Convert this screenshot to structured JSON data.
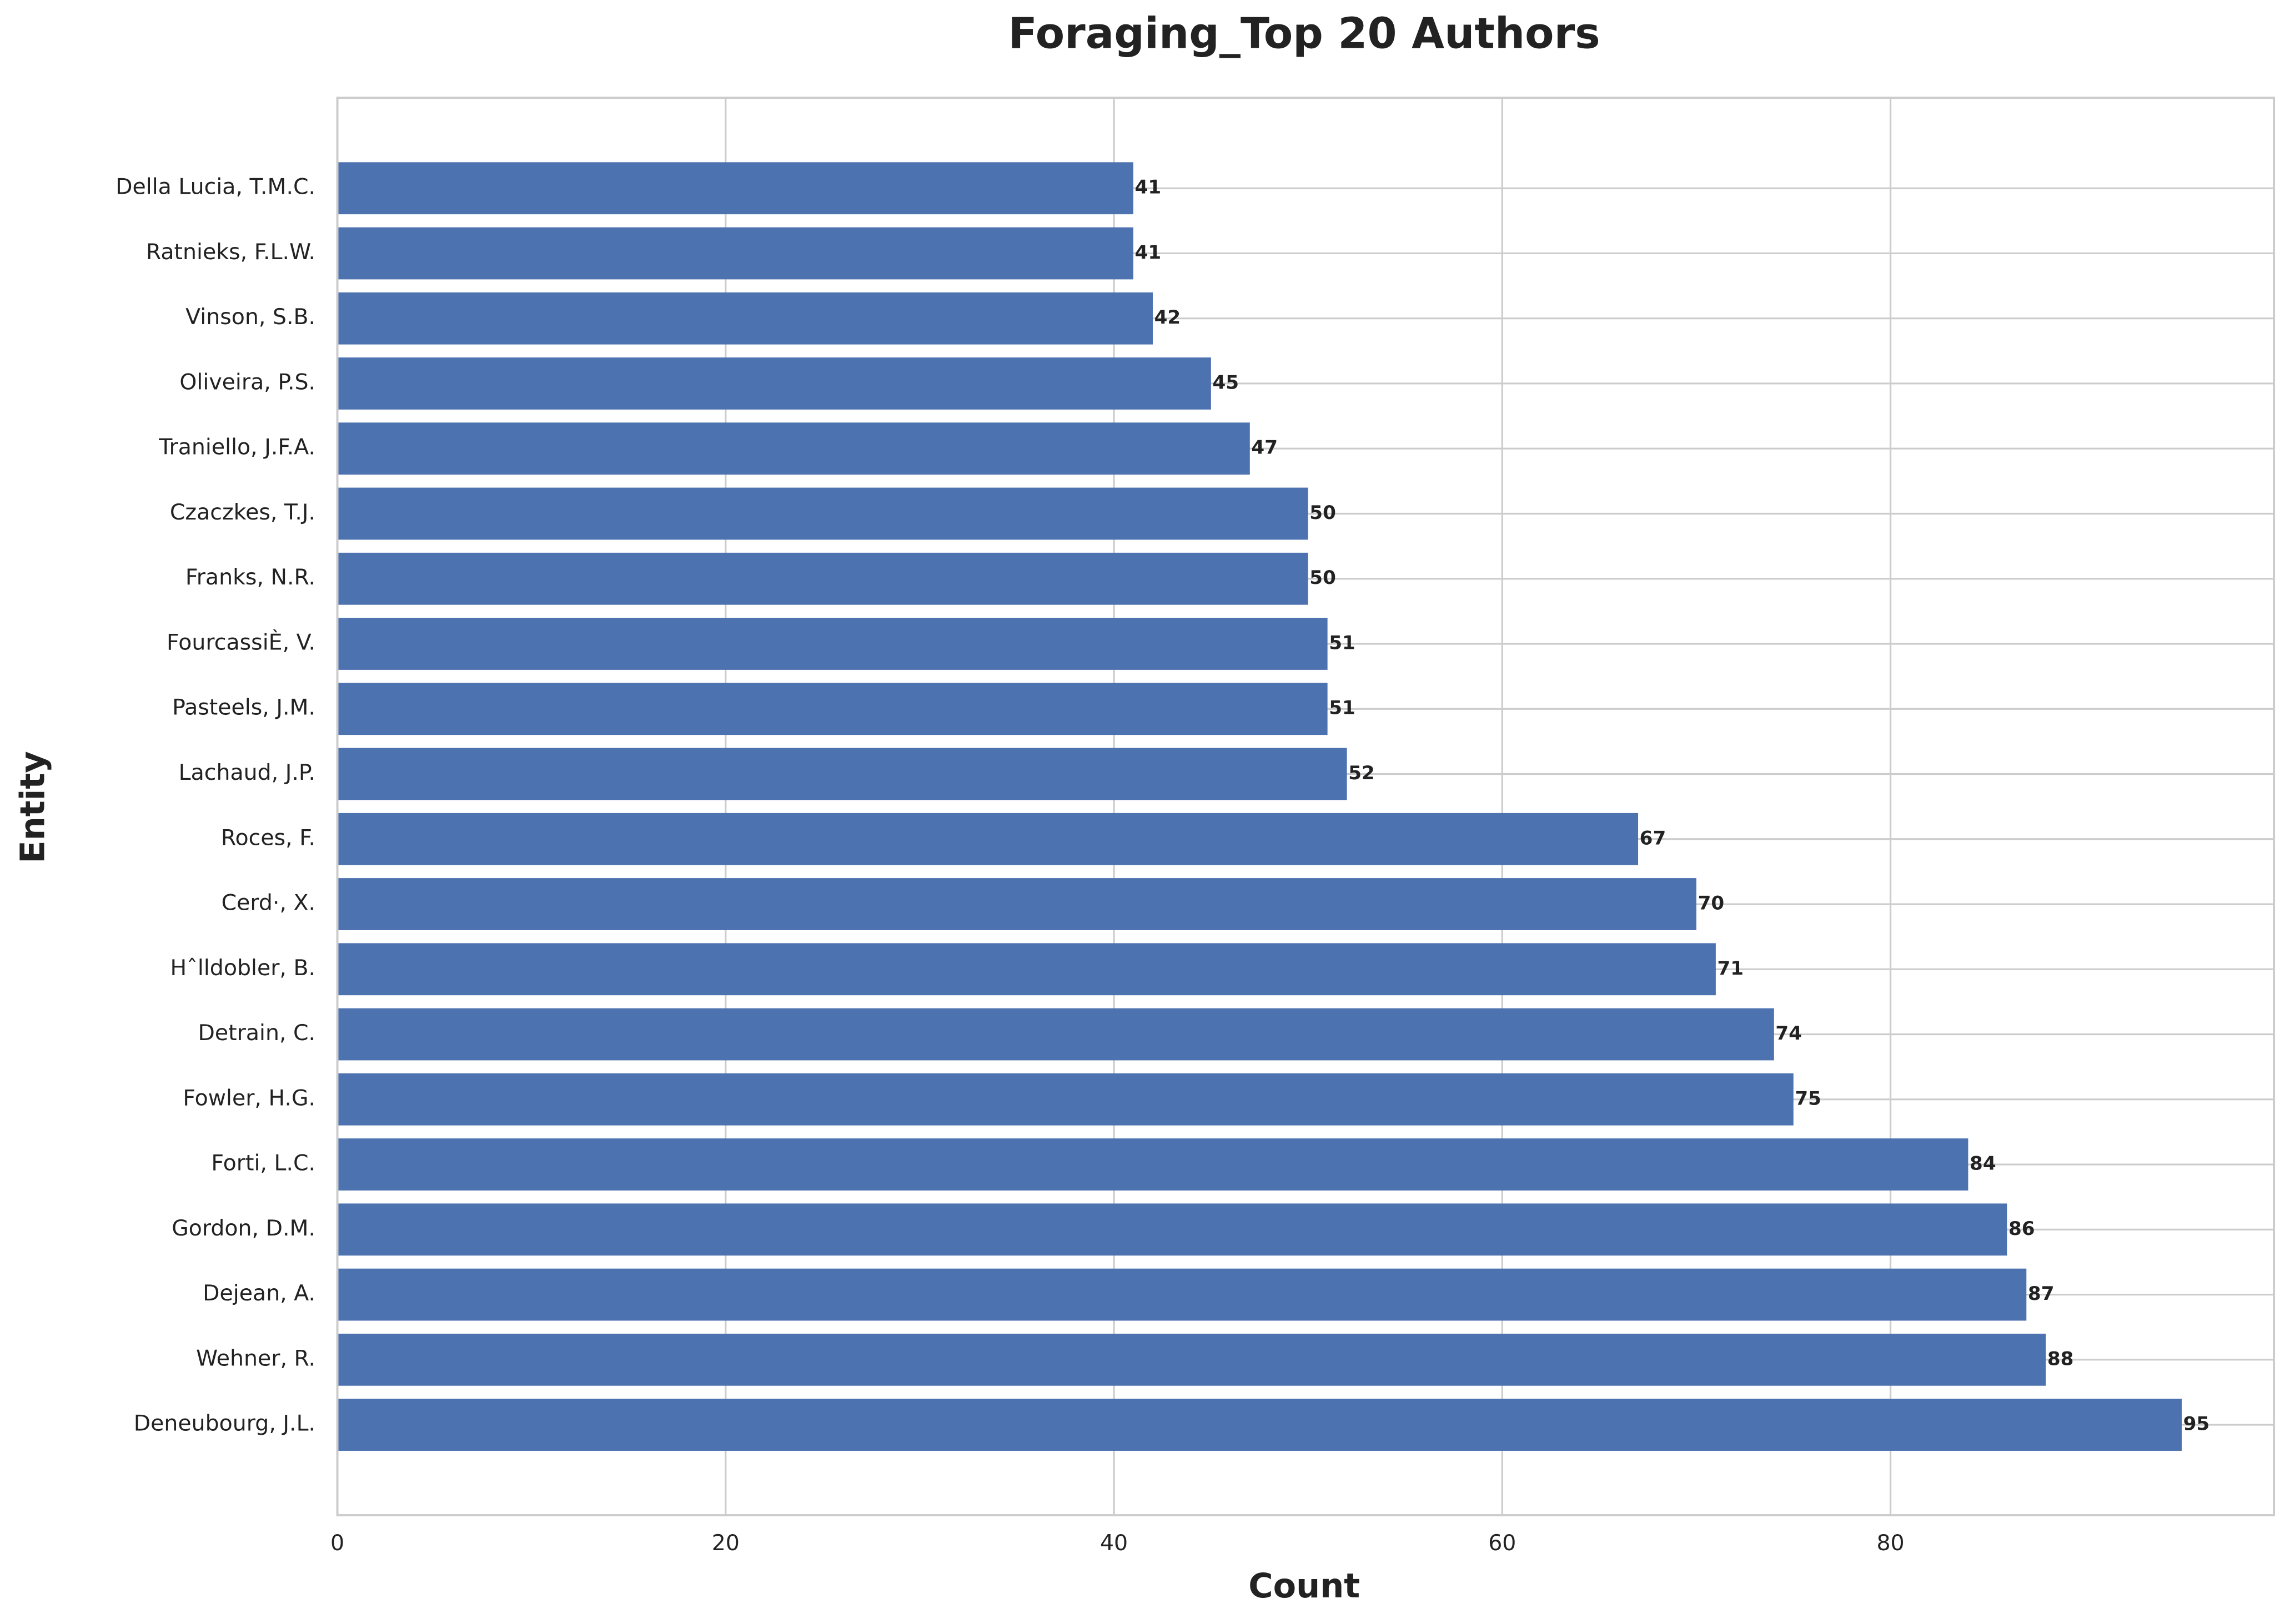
{
  "chart_data": {
    "type": "bar",
    "orientation": "horizontal",
    "title": "Foraging_Top 20 Authors",
    "xlabel": "Count",
    "ylabel": "Entity",
    "categories": [
      "Deneubourg, J.L.",
      "Wehner, R.",
      "Dejean, A.",
      "Gordon, D.M.",
      "Forti, L.C.",
      "Fowler, H.G.",
      "Detrain, C.",
      "Hˆlldobler, B.",
      "Cerd·, X.",
      "Roces, F.",
      "Lachaud, J.P.",
      "Pasteels, J.M.",
      "FourcassiÈ, V.",
      "Franks, N.R.",
      "Czaczkes, T.J.",
      "Traniello, J.F.A.",
      "Oliveira, P.S.",
      "Vinson, S.B.",
      "Ratnieks, F.L.W.",
      "Della Lucia, T.M.C."
    ],
    "values": [
      95,
      88,
      87,
      86,
      84,
      75,
      74,
      71,
      70,
      67,
      52,
      51,
      51,
      50,
      50,
      47,
      45,
      42,
      41,
      41
    ],
    "color": "#4c72b0",
    "xlim": [
      0,
      99.75
    ],
    "xticks": [
      0,
      20,
      40,
      60,
      80
    ],
    "grid": true
  }
}
